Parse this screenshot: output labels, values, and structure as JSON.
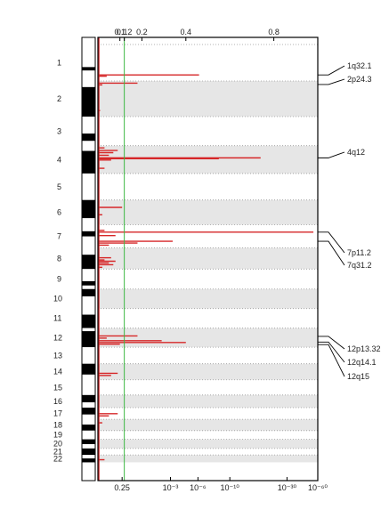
{
  "chart_data": {
    "type": "bar",
    "orientation": "horizontal",
    "title": "",
    "xlabel": "",
    "ylabel": "",
    "chromosomes": [
      {
        "label": "1",
        "start": 0.0,
        "end": 0.084
      },
      {
        "label": "2",
        "start": 0.084,
        "end": 0.166
      },
      {
        "label": "3",
        "start": 0.166,
        "end": 0.233
      },
      {
        "label": "4",
        "start": 0.233,
        "end": 0.297
      },
      {
        "label": "5",
        "start": 0.297,
        "end": 0.358
      },
      {
        "label": "6",
        "start": 0.358,
        "end": 0.415
      },
      {
        "label": "7",
        "start": 0.415,
        "end": 0.468
      },
      {
        "label": "8",
        "start": 0.468,
        "end": 0.517
      },
      {
        "label": "9",
        "start": 0.517,
        "end": 0.563
      },
      {
        "label": "10",
        "start": 0.563,
        "end": 0.608
      },
      {
        "label": "11",
        "start": 0.608,
        "end": 0.653
      },
      {
        "label": "12",
        "start": 0.653,
        "end": 0.697
      },
      {
        "label": "13",
        "start": 0.697,
        "end": 0.735
      },
      {
        "label": "14",
        "start": 0.735,
        "end": 0.772
      },
      {
        "label": "15",
        "start": 0.772,
        "end": 0.807
      },
      {
        "label": "16",
        "start": 0.807,
        "end": 0.836
      },
      {
        "label": "17",
        "start": 0.836,
        "end": 0.863
      },
      {
        "label": "18",
        "start": 0.863,
        "end": 0.889
      },
      {
        "label": "19",
        "start": 0.889,
        "end": 0.909
      },
      {
        "label": "20",
        "start": 0.909,
        "end": 0.93
      },
      {
        "label": "21",
        "start": 0.93,
        "end": 0.945
      },
      {
        "label": "22",
        "start": 0.945,
        "end": 0.962
      }
    ],
    "ideogram_bands": [
      [
        0.0,
        0.015,
        "white"
      ],
      [
        0.015,
        0.052,
        "white"
      ],
      [
        0.052,
        0.06,
        "black"
      ],
      [
        0.06,
        0.084,
        "white"
      ],
      [
        0.084,
        0.098,
        "white"
      ],
      [
        0.098,
        0.166,
        "black"
      ],
      [
        0.166,
        0.205,
        "white"
      ],
      [
        0.205,
        0.222,
        "black"
      ],
      [
        0.222,
        0.233,
        "white"
      ],
      [
        0.233,
        0.245,
        "white"
      ],
      [
        0.245,
        0.297,
        "black"
      ],
      [
        0.297,
        0.358,
        "white"
      ],
      [
        0.358,
        0.4,
        "black"
      ],
      [
        0.4,
        0.415,
        "white"
      ],
      [
        0.415,
        0.43,
        "white"
      ],
      [
        0.43,
        0.442,
        "black"
      ],
      [
        0.442,
        0.468,
        "white"
      ],
      [
        0.468,
        0.484,
        "white"
      ],
      [
        0.484,
        0.517,
        "black"
      ],
      [
        0.517,
        0.545,
        "white"
      ],
      [
        0.545,
        0.555,
        "black"
      ],
      [
        0.555,
        0.563,
        "white"
      ],
      [
        0.563,
        0.58,
        "black"
      ],
      [
        0.58,
        0.608,
        "white"
      ],
      [
        0.608,
        0.622,
        "white"
      ],
      [
        0.622,
        0.653,
        "black"
      ],
      [
        0.653,
        0.66,
        "white"
      ],
      [
        0.66,
        0.697,
        "black"
      ],
      [
        0.697,
        0.718,
        "white"
      ],
      [
        0.718,
        0.735,
        "white"
      ],
      [
        0.735,
        0.76,
        "black"
      ],
      [
        0.76,
        0.772,
        "white"
      ],
      [
        0.772,
        0.79,
        "white"
      ],
      [
        0.79,
        0.807,
        "white"
      ],
      [
        0.807,
        0.824,
        "black"
      ],
      [
        0.824,
        0.836,
        "white"
      ],
      [
        0.836,
        0.852,
        "black"
      ],
      [
        0.852,
        0.863,
        "white"
      ],
      [
        0.863,
        0.875,
        "white"
      ],
      [
        0.875,
        0.889,
        "black"
      ],
      [
        0.889,
        0.909,
        "white"
      ],
      [
        0.909,
        0.92,
        "black"
      ],
      [
        0.92,
        0.93,
        "white"
      ],
      [
        0.93,
        0.945,
        "black"
      ],
      [
        0.945,
        0.953,
        "white"
      ],
      [
        0.953,
        0.962,
        "black"
      ]
    ],
    "top_axis": {
      "ticks": [
        0.1,
        0.12,
        0.2,
        0.4,
        0.8
      ],
      "tick_labels": [
        "0.1",
        "0.12",
        "0.2",
        "0.4",
        "0.8"
      ],
      "range": [
        0,
        1
      ]
    },
    "bottom_axis": {
      "ticks": [
        0.11,
        0.33,
        0.455,
        0.6,
        0.86,
        1.0
      ],
      "tick_labels": [
        "0.25",
        "10⁻³",
        "10⁻⁶",
        "10⁻¹⁰",
        "10⁻³⁰",
        "10⁻⁶⁰"
      ],
      "range": [
        0,
        1
      ]
    },
    "threshold": {
      "value": 0.12,
      "color": "#3db843"
    },
    "bars": [
      {
        "pos": 0.07,
        "value": 0.46
      },
      {
        "pos": 0.073,
        "value": 0.04
      },
      {
        "pos": 0.089,
        "value": 0.18
      },
      {
        "pos": 0.093,
        "value": 0.02
      },
      {
        "pos": 0.152,
        "value": 0.01
      },
      {
        "pos": 0.238,
        "value": 0.03
      },
      {
        "pos": 0.244,
        "value": 0.09
      },
      {
        "pos": 0.249,
        "value": 0.07
      },
      {
        "pos": 0.255,
        "value": 0.05
      },
      {
        "pos": 0.261,
        "value": 0.74
      },
      {
        "pos": 0.263,
        "value": 0.55
      },
      {
        "pos": 0.266,
        "value": 0.06
      },
      {
        "pos": 0.285,
        "value": 0.03
      },
      {
        "pos": 0.375,
        "value": 0.11
      },
      {
        "pos": 0.392,
        "value": 0.02
      },
      {
        "pos": 0.428,
        "value": 0.03
      },
      {
        "pos": 0.432,
        "value": 0.98
      },
      {
        "pos": 0.44,
        "value": 0.08
      },
      {
        "pos": 0.453,
        "value": 0.34
      },
      {
        "pos": 0.457,
        "value": 0.18
      },
      {
        "pos": 0.462,
        "value": 0.05
      },
      {
        "pos": 0.491,
        "value": 0.06
      },
      {
        "pos": 0.496,
        "value": 0.03
      },
      {
        "pos": 0.499,
        "value": 0.08
      },
      {
        "pos": 0.503,
        "value": 0.05
      },
      {
        "pos": 0.507,
        "value": 0.07
      },
      {
        "pos": 0.513,
        "value": 0.02
      },
      {
        "pos": 0.671,
        "value": 0.18
      },
      {
        "pos": 0.676,
        "value": 0.04
      },
      {
        "pos": 0.682,
        "value": 0.29
      },
      {
        "pos": 0.686,
        "value": 0.4
      },
      {
        "pos": 0.69,
        "value": 0.1
      },
      {
        "pos": 0.757,
        "value": 0.09
      },
      {
        "pos": 0.762,
        "value": 0.06
      },
      {
        "pos": 0.85,
        "value": 0.09
      },
      {
        "pos": 0.855,
        "value": 0.05
      },
      {
        "pos": 0.871,
        "value": 0.02
      },
      {
        "pos": 0.956,
        "value": 0.03
      }
    ],
    "annotations": [
      {
        "label": "1q32.1",
        "pos": 0.07
      },
      {
        "label": "2p24.3",
        "pos": 0.092
      },
      {
        "label": "4q12",
        "pos": 0.261
      },
      {
        "label": "7p11.2",
        "pos": 0.432
      },
      {
        "label": "7q31.2",
        "pos": 0.453
      },
      {
        "label": "12p13.32",
        "pos": 0.672
      },
      {
        "label": "12q14.1",
        "pos": 0.685
      },
      {
        "label": "12q15",
        "pos": 0.691
      }
    ],
    "colors": {
      "bar": "#d62728",
      "shade": "#e6e6e6",
      "dotted": "#9a9a9a",
      "frame": "#000000",
      "threshold": "#3db843"
    }
  }
}
